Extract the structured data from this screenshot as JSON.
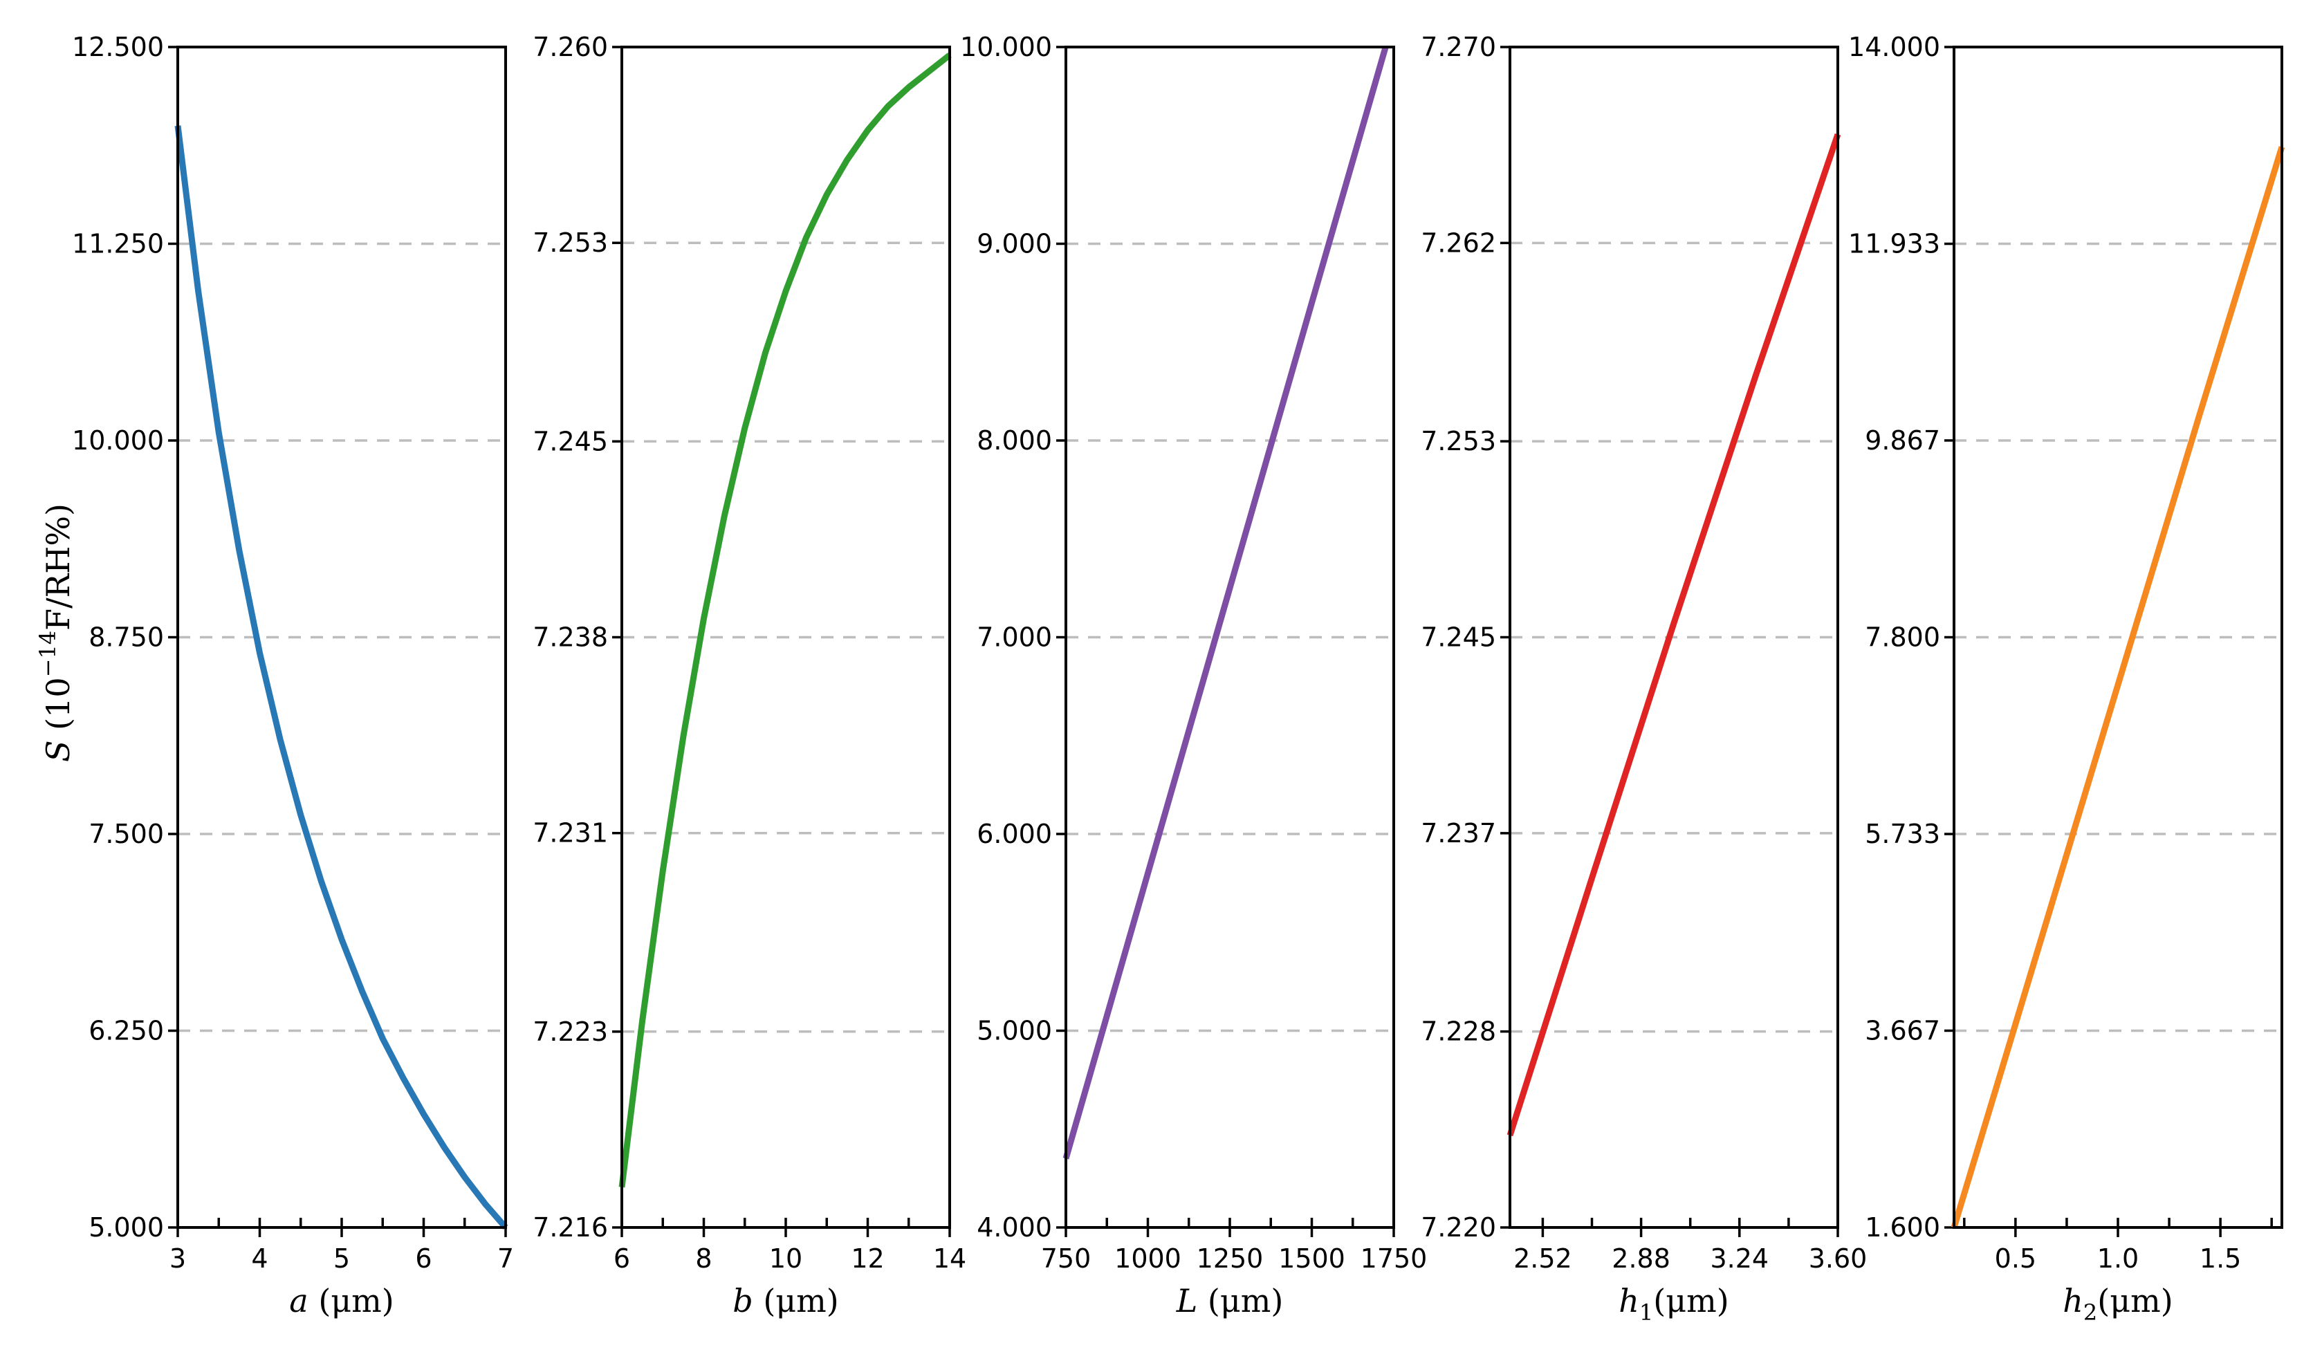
{
  "ylabel": {
    "symbol": "S",
    "prefix": " (10",
    "exponent": "−14",
    "suffix": "F/RH%)"
  },
  "colors": {
    "a": "#2878b5",
    "b": "#2f9e2f",
    "L": "#7d4ea3",
    "h1": "#e02424",
    "h2": "#f5891f",
    "grid": "#bdbdbd"
  },
  "chart_data": [
    {
      "type": "line",
      "name": "a",
      "xlabel": {
        "symbol": "a",
        "sub": "",
        "unit": " (μm)"
      },
      "xlim": [
        3,
        7
      ],
      "ylim": [
        5.0,
        12.5
      ],
      "xticks": [
        "3",
        "4",
        "5",
        "6",
        "7"
      ],
      "xtick_values": [
        3,
        4,
        5,
        6,
        7
      ],
      "yticks": [
        "5.000",
        "6.250",
        "7.500",
        "8.750",
        "10.000",
        "11.250",
        "12.500"
      ],
      "ytick_values": [
        5.0,
        6.25,
        7.5,
        8.75,
        10.0,
        11.25,
        12.5
      ],
      "grid": true,
      "x": [
        3.0,
        3.25,
        3.5,
        3.75,
        4.0,
        4.25,
        4.5,
        4.75,
        5.0,
        5.25,
        5.5,
        5.75,
        6.0,
        6.25,
        6.5,
        6.75,
        7.0
      ],
      "y": [
        12.0,
        10.95,
        10.05,
        9.3,
        8.65,
        8.1,
        7.62,
        7.2,
        6.83,
        6.5,
        6.2,
        5.95,
        5.72,
        5.51,
        5.32,
        5.15,
        5.0
      ]
    },
    {
      "type": "line",
      "name": "b",
      "xlabel": {
        "symbol": "b",
        "sub": "",
        "unit": " (μm)"
      },
      "xlim": [
        6,
        14
      ],
      "ylim": [
        7.216,
        7.26
      ],
      "xticks": [
        "6",
        "8",
        "10",
        "12",
        "14"
      ],
      "xtick_values": [
        6,
        8,
        10,
        12,
        14
      ],
      "yticks": [
        "7.216",
        "7.223",
        "7.231",
        "7.238",
        "7.245",
        "7.253",
        "7.260"
      ],
      "ytick_values": [
        7.216,
        7.2233,
        7.2307,
        7.238,
        7.2453,
        7.2527,
        7.26
      ],
      "grid": true,
      "x": [
        6.0,
        6.5,
        7.0,
        7.5,
        8.0,
        8.5,
        9.0,
        9.5,
        10.0,
        10.5,
        11.0,
        11.5,
        12.0,
        12.5,
        13.0,
        13.5,
        14.0
      ],
      "y": [
        7.2175,
        7.2237,
        7.2293,
        7.2343,
        7.2387,
        7.2425,
        7.2458,
        7.2486,
        7.2509,
        7.2529,
        7.2545,
        7.2558,
        7.2569,
        7.2578,
        7.2585,
        7.2591,
        7.2597
      ]
    },
    {
      "type": "line",
      "name": "L",
      "xlabel": {
        "symbol": "L",
        "sub": "",
        "unit": " (μm)"
      },
      "xlim": [
        750,
        1750
      ],
      "ylim": [
        4.0,
        10.0
      ],
      "xticks": [
        "750",
        "1000",
        "1250",
        "1500",
        "1750"
      ],
      "xtick_values": [
        750,
        1000,
        1250,
        1500,
        1750
      ],
      "yticks": [
        "4.000",
        "5.000",
        "6.000",
        "7.000",
        "8.000",
        "9.000",
        "10.000"
      ],
      "ytick_values": [
        4.0,
        5.0,
        6.0,
        7.0,
        8.0,
        9.0,
        10.0
      ],
      "grid": true,
      "x": [
        750,
        1000,
        1250,
        1500,
        1725
      ],
      "y": [
        4.35,
        5.8,
        7.25,
        8.7,
        10.0
      ]
    },
    {
      "type": "line",
      "name": "h1",
      "xlabel": {
        "symbol": "h",
        "sub": "1",
        "unit": "(μm)"
      },
      "xlim": [
        2.4,
        3.6
      ],
      "ylim": [
        7.22,
        7.27
      ],
      "xticks": [
        "2.52",
        "2.88",
        "3.24",
        "3.60"
      ],
      "xtick_values": [
        2.52,
        2.88,
        3.24,
        3.6
      ],
      "yticks": [
        "7.220",
        "7.228",
        "7.237",
        "7.245",
        "7.253",
        "7.262",
        "7.270"
      ],
      "ytick_values": [
        7.22,
        7.2283,
        7.2367,
        7.245,
        7.2533,
        7.2617,
        7.27
      ],
      "grid": true,
      "x": [
        2.4,
        2.7,
        3.0,
        3.3,
        3.6
      ],
      "y": [
        7.2239,
        7.2348,
        7.2456,
        7.2561,
        7.2663
      ]
    },
    {
      "type": "line",
      "name": "h2",
      "xlabel": {
        "symbol": "h",
        "sub": "2",
        "unit": "(μm)"
      },
      "xlim": [
        0.2,
        1.8
      ],
      "ylim": [
        1.6,
        14.0
      ],
      "xticks": [
        "0.5",
        "1.0",
        "1.5"
      ],
      "xtick_values": [
        0.5,
        1.0,
        1.5
      ],
      "yticks": [
        "1.600",
        "3.667",
        "5.733",
        "7.800",
        "9.867",
        "11.933",
        "14.000"
      ],
      "ytick_values": [
        1.6,
        3.667,
        5.733,
        7.8,
        9.867,
        11.933,
        14.0
      ],
      "grid": true,
      "x": [
        0.2,
        0.6,
        1.0,
        1.4,
        1.8
      ],
      "y": [
        1.6,
        4.45,
        7.3,
        10.15,
        12.95
      ]
    }
  ]
}
